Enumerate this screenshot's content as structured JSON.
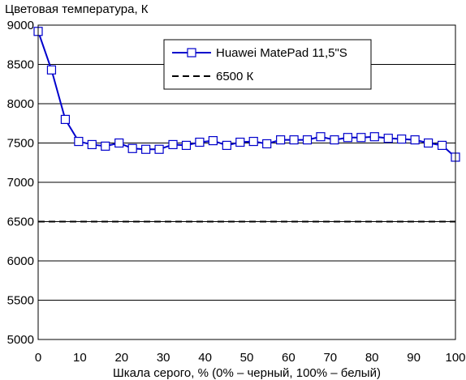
{
  "chart_data": {
    "type": "line",
    "title": "",
    "ylabel": "Цветовая температура, К",
    "xlabel": "Шкала серого, % (0% – черный, 100% – белый)",
    "xlim": [
      0,
      100
    ],
    "ylim": [
      5000,
      9000
    ],
    "x_ticks": [
      "0",
      "10",
      "20",
      "30",
      "40",
      "50",
      "60",
      "70",
      "80",
      "90",
      "100"
    ],
    "y_ticks": [
      "5000",
      "5500",
      "6000",
      "6500",
      "7000",
      "7500",
      "8000",
      "8500",
      "9000"
    ],
    "grid": "horizontal",
    "legend": "top-right",
    "series": [
      {
        "name": "Huawei MatePad 11,5\"S",
        "color": "#0000cc",
        "marker": "square",
        "x": [
          0,
          3.2,
          6.5,
          9.7,
          12.9,
          16.1,
          19.4,
          22.6,
          25.8,
          29.0,
          32.3,
          35.5,
          38.7,
          41.9,
          45.2,
          48.4,
          51.6,
          54.8,
          58.1,
          61.3,
          64.5,
          67.7,
          71.0,
          74.2,
          77.4,
          80.6,
          83.9,
          87.1,
          90.3,
          93.5,
          96.8,
          100
        ],
        "y": [
          8920,
          8430,
          7800,
          7520,
          7480,
          7460,
          7500,
          7430,
          7420,
          7420,
          7480,
          7470,
          7510,
          7530,
          7470,
          7510,
          7520,
          7490,
          7540,
          7540,
          7540,
          7580,
          7540,
          7570,
          7570,
          7580,
          7560,
          7550,
          7540,
          7500,
          7470,
          7320
        ]
      },
      {
        "name": "6500 К",
        "color": "#000000",
        "style": "dashed",
        "x": [
          0,
          100
        ],
        "y": [
          6500,
          6500
        ]
      }
    ]
  }
}
